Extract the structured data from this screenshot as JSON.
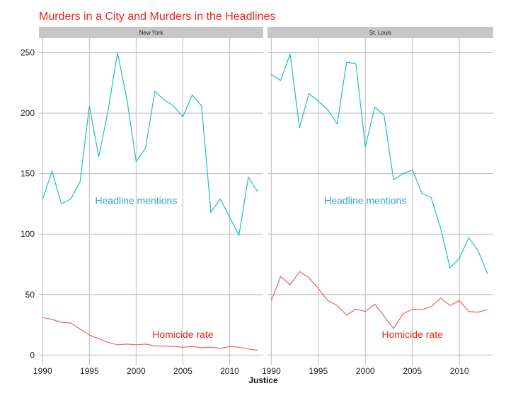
{
  "chart_data": {
    "type": "line",
    "title": "Murders in a City and Murders in the Headlines",
    "xlabel": "Justice",
    "ylabel": "",
    "xlim": [
      1989.6,
      2013.6
    ],
    "ylim": [
      -8,
      262
    ],
    "x_ticks": [
      1990,
      1995,
      2000,
      2005,
      2010
    ],
    "y_ticks": [
      0,
      50,
      100,
      150,
      200,
      250
    ],
    "grid": true,
    "legend": "none",
    "colors": {
      "headline": "#1fbfc3",
      "homicide": "#f0605b",
      "headline_label": "#3aa0c8",
      "homicide_label": "#e8281e",
      "title": "#e8281e"
    },
    "x": [
      1990,
      1991,
      1992,
      1993,
      1994,
      1995,
      1996,
      1997,
      1998,
      1999,
      2000,
      2001,
      2002,
      2003,
      2004,
      2005,
      2006,
      2007,
      2008,
      2009,
      2010,
      2011,
      2012,
      2013
    ],
    "panels": [
      {
        "strip": "New York",
        "annotations": [
          {
            "text": "Headline mentions",
            "x": 2000.0,
            "y": 128,
            "series": "headline"
          },
          {
            "text": "Homicide rate",
            "x": 2005.0,
            "y": 17,
            "series": "homicide"
          }
        ],
        "series": [
          {
            "key": "headline",
            "values": [
              129,
              152,
              125,
              129,
              143,
              206,
              164,
              202,
              250,
              212,
              160,
              171,
              218,
              211,
              206,
              197,
              215,
              206,
              118,
              129,
              114,
              99,
              147,
              135
            ]
          },
          {
            "key": "homicide",
            "values": [
              31,
              29.5,
              27,
              26.5,
              21.5,
              16.5,
              13.5,
              10.5,
              8.5,
              9,
              8.5,
              9,
              7.5,
              7.5,
              7,
              6.5,
              7,
              6,
              6.5,
              5.5,
              7,
              6.5,
              5,
              4
            ]
          }
        ]
      },
      {
        "strip": "St. Louis",
        "annotations": [
          {
            "text": "Headline mentions",
            "x": 2000.0,
            "y": 128,
            "series": "headline"
          },
          {
            "text": "Homicide rate",
            "x": 2005.0,
            "y": 17,
            "series": "homicide"
          }
        ],
        "series": [
          {
            "key": "headline",
            "values": [
              232,
              227,
              249,
              188,
              216,
              210,
              203,
              191,
              242,
              241,
              172,
              205,
              198,
              145,
              150,
              153,
              134,
              130,
              105,
              72,
              80,
              97,
              86,
              67
            ]
          },
          {
            "key": "homicide",
            "values": [
              45,
              65,
              58,
              69,
              64,
              55,
              45,
              41,
              33,
              38,
              36,
              42,
              32,
              22,
              34,
              38,
              37.5,
              40,
              47,
              41,
              45,
              36,
              35.5,
              37.5
            ]
          }
        ]
      }
    ]
  }
}
